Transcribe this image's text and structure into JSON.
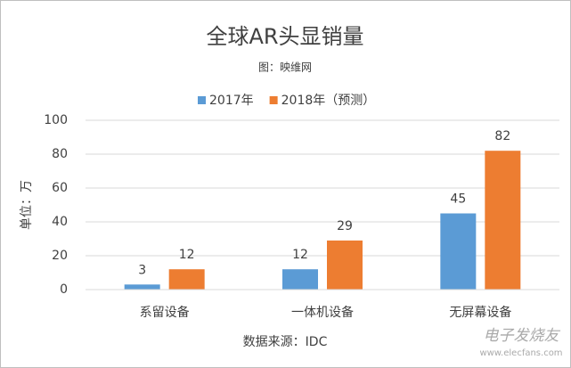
{
  "chart_data": {
    "type": "bar",
    "title": "全球AR头显销量",
    "subtitle": "图：映维网",
    "y_label": "单位：万",
    "source": "数据来源：IDC",
    "watermark": "电子发烧友",
    "watermark_url": "www.elecfans.com",
    "categories": [
      "系留设备",
      "一体机设备",
      "无屏幕设备"
    ],
    "series": [
      {
        "name": "2017年",
        "color": "#5b9bd5",
        "values": [
          3,
          12,
          45
        ]
      },
      {
        "name": "2018年（预测）",
        "color": "#ed7d31",
        "values": [
          12,
          29,
          82
        ]
      }
    ],
    "ylim": [
      0,
      100
    ],
    "yticks": [
      0,
      20,
      40,
      60,
      80,
      100
    ],
    "grid": true,
    "legend": "top"
  }
}
